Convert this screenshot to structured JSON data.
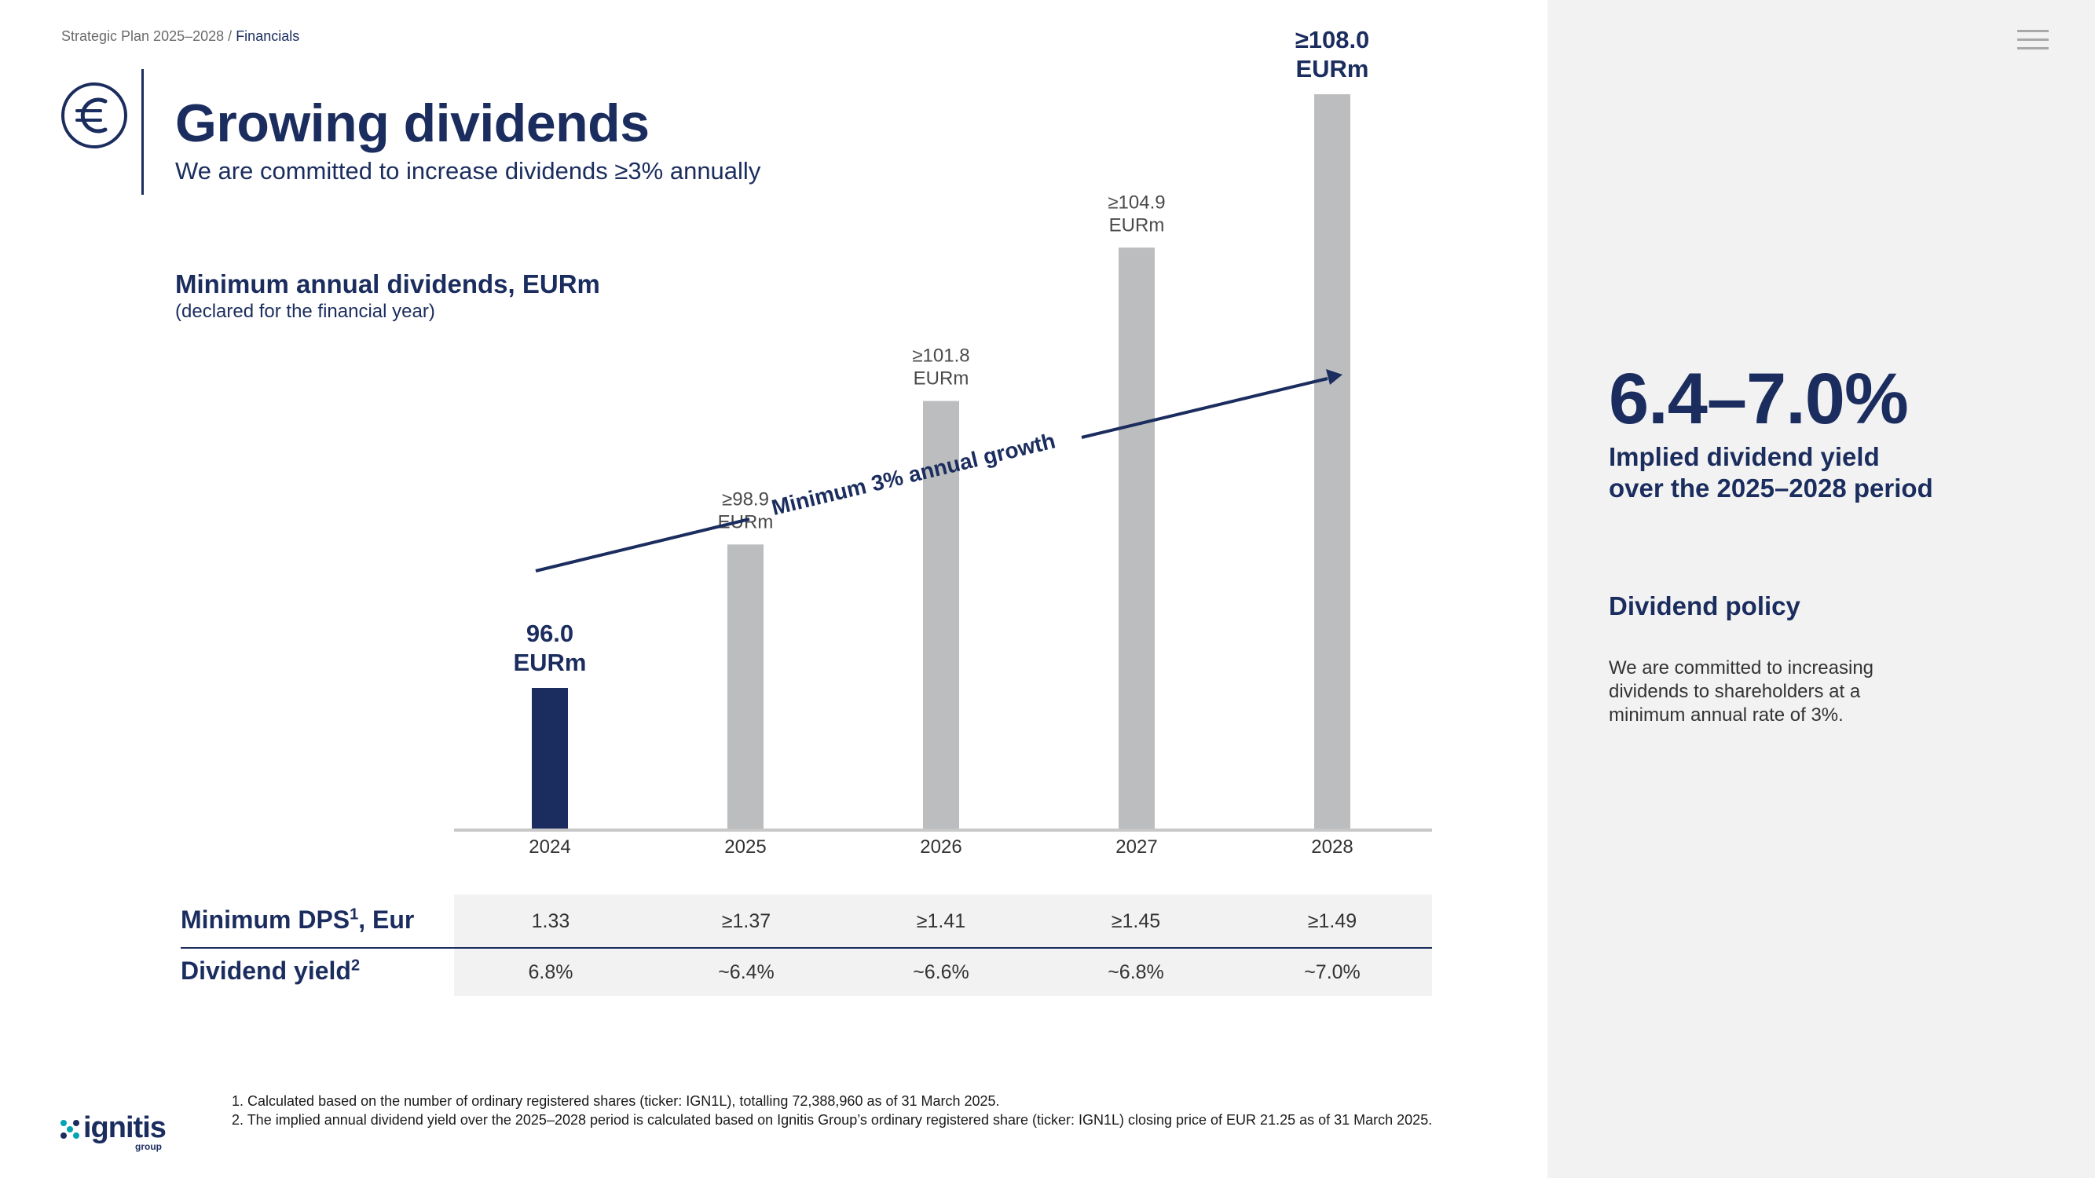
{
  "breadcrumb": {
    "parent": "Strategic Plan 2025–2028 /",
    "current": "Financials"
  },
  "header": {
    "icon": "euro-circle-icon",
    "title": "Growing dividends",
    "subtitle": "We are committed to increase dividends ≥3% annually"
  },
  "chart_data": {
    "type": "bar",
    "title": "Minimum annual dividends, EURm",
    "subtitle": "(declared for the financial year)",
    "categories": [
      "2024",
      "2025",
      "2026",
      "2027",
      "2028"
    ],
    "values": [
      96.0,
      98.9,
      101.8,
      104.9,
      108.0
    ],
    "data_labels": [
      [
        "96.0",
        "EURm"
      ],
      [
        "≥98.9",
        "EURm"
      ],
      [
        "≥101.8",
        "EURm"
      ],
      [
        "≥104.9",
        "EURm"
      ],
      [
        "≥108.0",
        "EURm"
      ]
    ],
    "bar_colors": [
      "#1b2d5e",
      "#bcbdbf",
      "#bcbdbf",
      "#bcbdbf",
      "#bcbdbf"
    ],
    "growth_annotation": "Minimum 3% annual growth",
    "ylim": [
      0,
      110
    ]
  },
  "table": {
    "rows": [
      {
        "label": "Minimum DPS",
        "sup": "1",
        "suffix": ", Eur",
        "values": [
          "1.33",
          "≥1.37",
          "≥1.41",
          "≥1.45",
          "≥1.49"
        ]
      },
      {
        "label": "Dividend yield",
        "sup": "2",
        "suffix": "",
        "values": [
          "6.8%",
          "~6.4%",
          "~6.6%",
          "~6.8%",
          "~7.0%"
        ]
      }
    ]
  },
  "footnotes": [
    "1. Calculated based on the number of ordinary registered shares (ticker: IGN1L), totalling 72,388,960 as of 31 March 2025.",
    "2. The implied annual dividend yield over the 2025–2028 period is calculated based on Ignitis Group’s ordinary registered share (ticker: IGN1L) closing price of EUR 21.25 as of 31 March 2025."
  ],
  "logo": {
    "name": "ignitis",
    "sub": "group"
  },
  "sidebar": {
    "kpi_value": "6.4–7.0%",
    "kpi_label_line1": "Implied dividend yield",
    "kpi_label_line2": "over the 2025–2028 period",
    "policy_heading": "Dividend policy",
    "policy_line1": "We are committed to increasing",
    "policy_line2": "dividends to shareholders at a",
    "policy_line3": "minimum annual rate of 3%."
  },
  "colors": {
    "navy": "#1b2d5e",
    "grey_bar": "#bcbdbf",
    "panel": "#f2f2f2"
  }
}
